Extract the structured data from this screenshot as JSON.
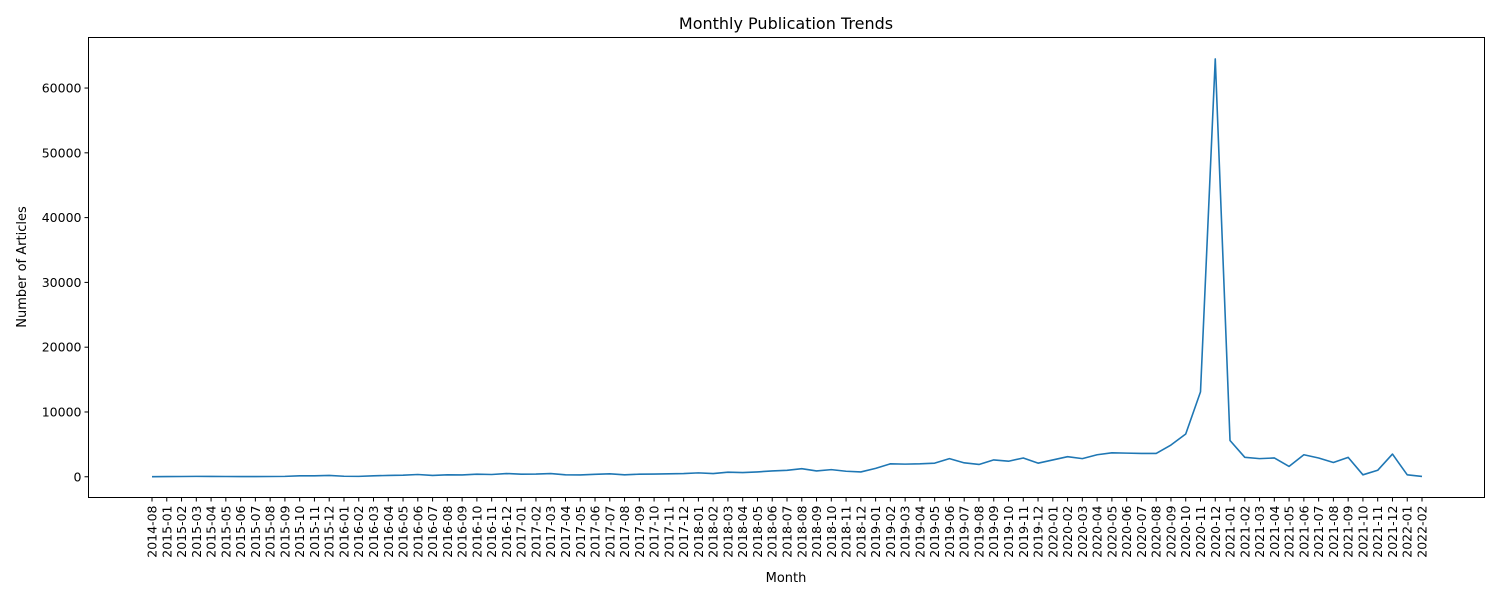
{
  "chart_data": {
    "type": "line",
    "title": "Monthly Publication Trends",
    "xlabel": "Month",
    "ylabel": "Number of Articles",
    "ylim": [
      -3200,
      67800
    ],
    "yticks": [
      0,
      10000,
      20000,
      30000,
      40000,
      50000,
      60000
    ],
    "grid": false,
    "series_color": "#1f77b4",
    "categories": [
      "2014-08",
      "2015-01",
      "2015-02",
      "2015-03",
      "2015-04",
      "2015-05",
      "2015-06",
      "2015-07",
      "2015-08",
      "2015-09",
      "2015-10",
      "2015-11",
      "2015-12",
      "2016-01",
      "2016-02",
      "2016-03",
      "2016-04",
      "2016-05",
      "2016-06",
      "2016-07",
      "2016-08",
      "2016-09",
      "2016-10",
      "2016-11",
      "2016-12",
      "2017-01",
      "2017-02",
      "2017-03",
      "2017-04",
      "2017-05",
      "2017-06",
      "2017-07",
      "2017-08",
      "2017-09",
      "2017-10",
      "2017-11",
      "2017-12",
      "2018-01",
      "2018-02",
      "2018-03",
      "2018-04",
      "2018-05",
      "2018-06",
      "2018-07",
      "2018-08",
      "2018-09",
      "2018-10",
      "2018-11",
      "2018-12",
      "2019-01",
      "2019-02",
      "2019-03",
      "2019-04",
      "2019-05",
      "2019-06",
      "2019-07",
      "2019-08",
      "2019-09",
      "2019-10",
      "2019-11",
      "2019-12",
      "2020-01",
      "2020-02",
      "2020-03",
      "2020-04",
      "2020-05",
      "2020-06",
      "2020-07",
      "2020-08",
      "2020-09",
      "2020-10",
      "2020-11",
      "2020-12",
      "2021-01",
      "2021-02",
      "2021-03",
      "2021-04",
      "2021-05",
      "2021-06",
      "2021-07",
      "2021-08",
      "2021-09",
      "2021-10",
      "2021-11",
      "2021-12",
      "2022-01",
      "2022-02"
    ],
    "values": [
      20,
      30,
      40,
      60,
      50,
      40,
      30,
      30,
      40,
      60,
      150,
      150,
      200,
      80,
      60,
      150,
      200,
      250,
      350,
      200,
      300,
      280,
      400,
      350,
      500,
      400,
      420,
      500,
      300,
      280,
      380,
      450,
      300,
      400,
      420,
      450,
      500,
      600,
      500,
      700,
      650,
      750,
      900,
      1000,
      1250,
      900,
      1100,
      850,
      750,
      1300,
      2000,
      1950,
      2000,
      2100,
      2800,
      2150,
      1900,
      2600,
      2400,
      2900,
      2100,
      2600,
      3100,
      2800,
      3400,
      3700,
      3650,
      3600,
      3600,
      4900,
      6600,
      13100,
      64500,
      5600,
      3000,
      2800,
      2900,
      1600,
      3400,
      2900,
      2200,
      3000,
      300,
      1000,
      3500,
      300,
      50
    ]
  }
}
